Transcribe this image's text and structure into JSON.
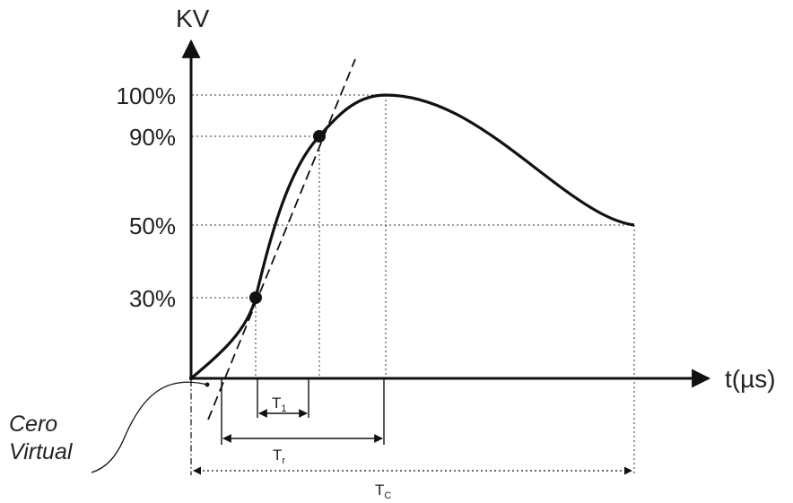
{
  "y_axis": {
    "label": "KV"
  },
  "x_axis": {
    "label": "t(µs)"
  },
  "levels": [
    {
      "key": "l100",
      "label": "100%",
      "value": 100
    },
    {
      "key": "l90",
      "label": "90%",
      "value": 90
    },
    {
      "key": "l50",
      "label": "50%",
      "value": 50
    },
    {
      "key": "l30",
      "label": "30%",
      "value": 30
    }
  ],
  "virtual_zero": {
    "line1": "Cero",
    "line2": "Virtual"
  },
  "intervals": {
    "t1": {
      "symbol": "T",
      "sub": "1"
    },
    "tr": {
      "symbol": "T",
      "sub": "r"
    },
    "tc": {
      "symbol": "T",
      "sub": "C"
    }
  },
  "colors": {
    "ink": "#111111",
    "text": "#222222",
    "background": "#ffffff"
  }
}
